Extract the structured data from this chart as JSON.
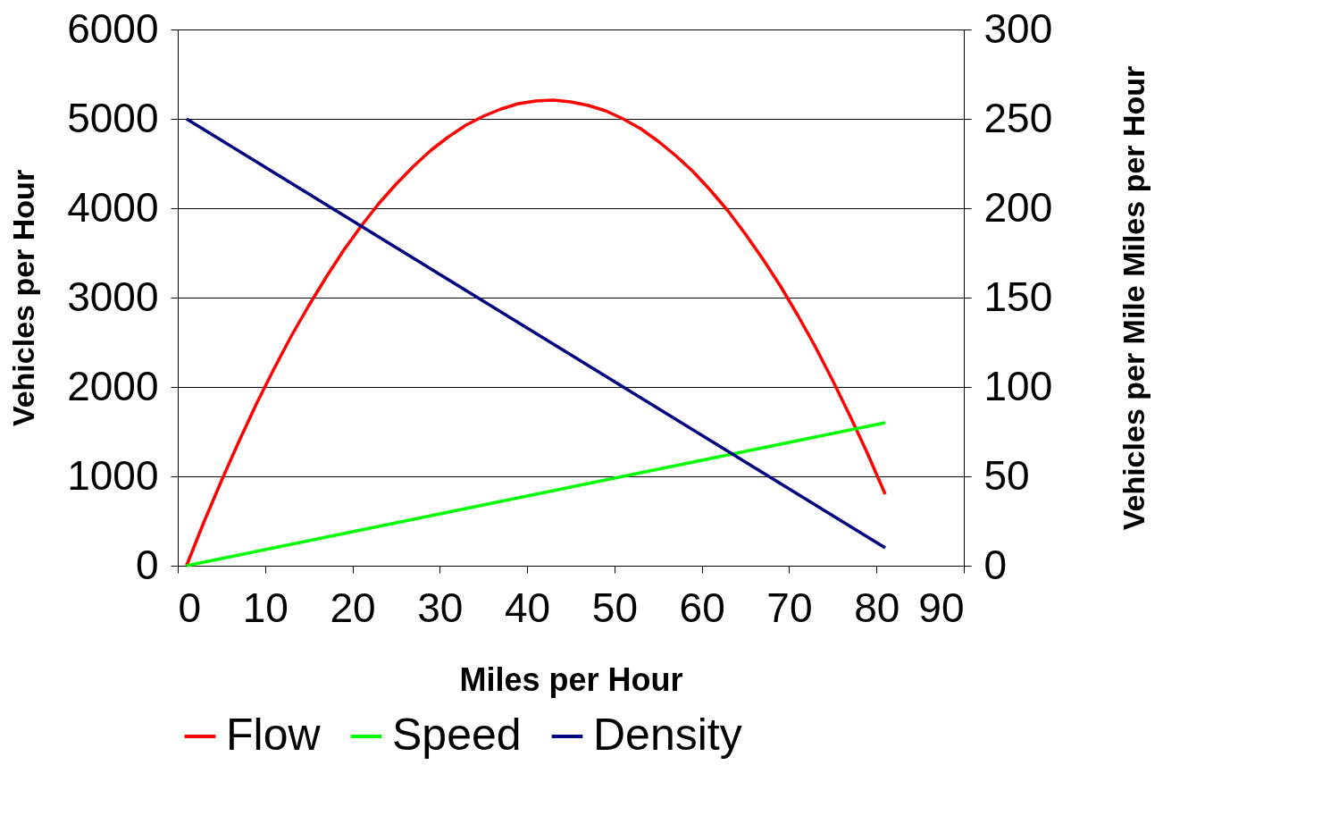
{
  "chart_data": {
    "type": "line",
    "xlabel": "Miles per Hour",
    "ylabel": "Vehicles per Hour",
    "y2label": "Vehicles per Mile Miles per Hour",
    "xlim": [
      0,
      90
    ],
    "xticks": [
      0,
      10,
      20,
      30,
      40,
      50,
      60,
      70,
      80,
      90
    ],
    "ylim": [
      0,
      6000
    ],
    "yticks": [
      0,
      1000,
      2000,
      3000,
      4000,
      5000,
      6000
    ],
    "y2lim": [
      0,
      300
    ],
    "y2ticks": [
      0,
      50,
      100,
      150,
      200,
      250,
      300
    ],
    "grid": "y",
    "legend": "bottom",
    "series": [
      {
        "name": "Flow",
        "color": "#ff0000",
        "x": [
          1,
          3,
          5,
          7,
          9,
          11,
          13,
          15,
          17,
          19,
          21,
          23,
          25,
          27,
          29,
          31,
          33,
          35,
          37,
          39,
          41,
          43,
          45,
          47,
          49,
          51,
          53,
          55,
          57,
          59,
          61,
          63,
          65,
          67,
          69,
          71,
          73,
          75,
          77,
          79,
          81
        ],
        "values": [
          0,
          490,
          950,
          1390,
          1810,
          2200,
          2570,
          2910,
          3230,
          3530,
          3800,
          4050,
          4270,
          4470,
          4650,
          4800,
          4930,
          5030,
          5110,
          5170,
          5200,
          5210,
          5190,
          5150,
          5090,
          5000,
          4890,
          4750,
          4590,
          4410,
          4200,
          3970,
          3710,
          3430,
          3130,
          2800,
          2450,
          2070,
          1670,
          1250,
          800
        ]
      },
      {
        "name": "Speed",
        "color": "#00ff00",
        "axis": "y2",
        "x": [
          1,
          5,
          9,
          13,
          17,
          21,
          25,
          29,
          33,
          37,
          41,
          45,
          49,
          53,
          57,
          61,
          65,
          69,
          73,
          77,
          81
        ],
        "values": [
          0,
          4,
          8,
          12,
          16,
          20,
          24,
          28,
          32,
          36,
          40,
          44,
          48,
          52,
          56,
          60,
          64,
          68,
          72,
          76,
          80
        ]
      },
      {
        "name": "Density",
        "color": "#000080",
        "axis": "y2",
        "x": [
          1,
          5,
          9,
          13,
          17,
          21,
          25,
          29,
          33,
          37,
          41,
          45,
          49,
          53,
          57,
          61,
          65,
          69,
          73,
          77,
          81
        ],
        "values": [
          250,
          238,
          226,
          214,
          202,
          190,
          178,
          166,
          154,
          142,
          130,
          118,
          106,
          94,
          82,
          70,
          58,
          46,
          34,
          22,
          10
        ]
      }
    ]
  }
}
